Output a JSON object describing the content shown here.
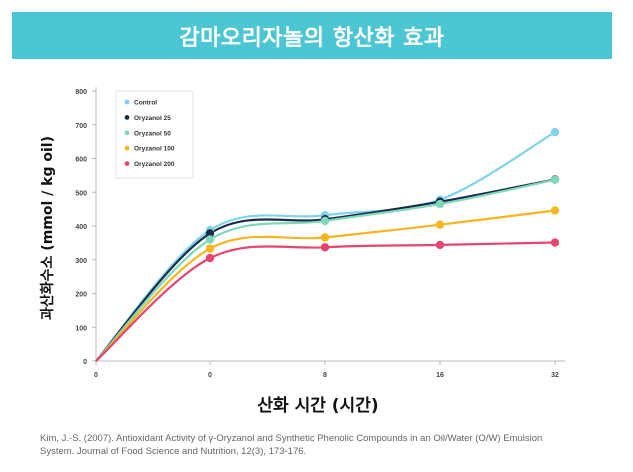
{
  "banner": {
    "title": "감마오리자놀의 항산화 효과",
    "color": "#4cc6d2"
  },
  "chart_data": {
    "type": "line",
    "title": "감마오리자놀의 항산화 효과",
    "xlabel": "산화 시간 (시간)",
    "ylabel": "과산화수소 (mmol / kg oil)",
    "x_tick_labels": [
      "0",
      "0",
      "8",
      "16",
      "32"
    ],
    "ylim": [
      0,
      800
    ],
    "y_ticks": [
      0,
      100,
      200,
      300,
      400,
      500,
      600,
      700,
      800
    ],
    "grid": false,
    "legend_position": "top-left",
    "series": [
      {
        "name": "Control",
        "color": "#7fd3ee",
        "values": [
          0,
          388,
          432,
          478,
          678
        ]
      },
      {
        "name": "Oryzanol 25",
        "color": "#1d2b4a",
        "values": [
          0,
          378,
          420,
          472,
          538
        ]
      },
      {
        "name": "Oryzanol 50",
        "color": "#7fd8b9",
        "values": [
          0,
          360,
          415,
          465,
          537
        ]
      },
      {
        "name": "Oryzanol 100",
        "color": "#f6b521",
        "values": [
          0,
          333,
          366,
          404,
          446
        ]
      },
      {
        "name": "Oryzanol 200",
        "color": "#e4466f",
        "values": [
          0,
          305,
          337,
          344,
          351
        ]
      }
    ]
  },
  "citation": {
    "line1": "Kim, J.-S. (2007). Antioxidant Activity of γ-Oryzanol and Synthetic Phenolic Compounds in an Oil/Water (O/W) Emulsion",
    "line2": "System. Journal of Food Science and Nutrition, 12(3), 173-176."
  }
}
